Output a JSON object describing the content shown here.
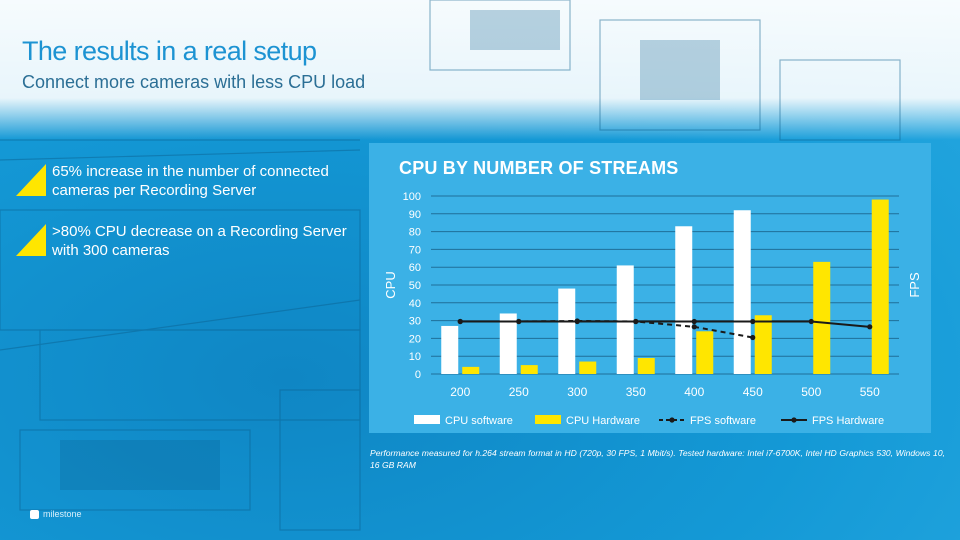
{
  "slide": {
    "title": "The results in a real setup",
    "subtitle": "Connect more cameras with less CPU load",
    "bullets": [
      "65% increase in the number of connected cameras per Recording Server",
      ">80% CPU decrease on a Recording Server with 300 cameras"
    ],
    "footnote": "Performance measured for h.264 stream format in HD (720p, 30 FPS, 1 Mbit/s). Tested hardware: Intel i7-6700K, Intel HD Graphics 530, Windows 10, 16 GB RAM",
    "logo_text": "milestone"
  },
  "colors": {
    "accent_blue": "#1d93d2",
    "chart_bg": "#3bb1e6",
    "white_bar": "#ffffff",
    "yellow_bar": "#ffe600",
    "line": "#1a1a1a"
  },
  "chart_data": {
    "type": "bar",
    "title": "CPU BY NUMBER OF STREAMS",
    "ylabel": "CPU",
    "y2label": "FPS",
    "ylim": [
      0,
      100
    ],
    "yticks": [
      0,
      10,
      20,
      30,
      40,
      50,
      60,
      70,
      80,
      90,
      100
    ],
    "categories": [
      "200",
      "250",
      "300",
      "350",
      "400",
      "450",
      "500",
      "550"
    ],
    "series": [
      {
        "name": "CPU software",
        "kind": "bar",
        "values": [
          27,
          34,
          48,
          61,
          83,
          92,
          null,
          null
        ]
      },
      {
        "name": "CPU Hardware",
        "kind": "bar",
        "values": [
          4,
          5,
          7,
          9,
          24,
          33,
          63,
          98
        ]
      },
      {
        "name": "FPS software",
        "kind": "line-dashed",
        "values": [
          29.5,
          29.5,
          29.8,
          29.5,
          26.5,
          20.5,
          null,
          null
        ]
      },
      {
        "name": "FPS Hardware",
        "kind": "line-solid",
        "values": [
          29.5,
          29.5,
          29.5,
          29.5,
          29.5,
          29.5,
          29.5,
          26.5
        ]
      }
    ],
    "legend_position": "bottom",
    "grid": true
  }
}
